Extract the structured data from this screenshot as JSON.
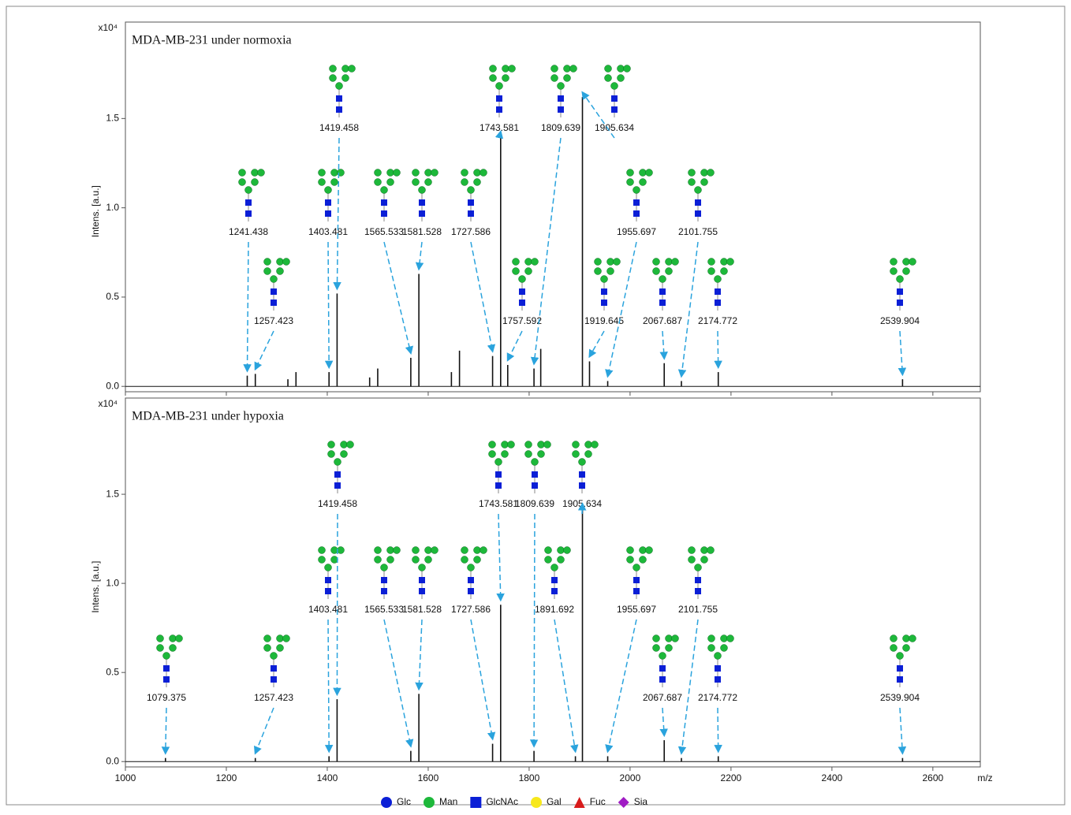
{
  "chart_data": [
    {
      "type": "stick",
      "title": "MDA-MB-231 under normoxia",
      "multiplier": "x10⁴",
      "ylabel": "Intens. [a.u.]",
      "xlim": [
        1000,
        2694
      ],
      "ylim": [
        -0.03,
        2.04
      ],
      "xticks": [
        1000,
        1200,
        1400,
        1600,
        1800,
        2000,
        2200,
        2400,
        2600
      ],
      "yticks": [
        {
          "value": 0,
          "label": "0.0"
        },
        0.5,
        {
          "value": 1,
          "label": "1.0"
        },
        1.5
      ],
      "color": "#111111",
      "x": [
        1241.438,
        1257.423,
        1322,
        1338,
        1403.481,
        1419.458,
        1484,
        1500,
        1565.533,
        1581.528,
        1646,
        1662,
        1727.586,
        1743.581,
        1757.592,
        1809.639,
        1823,
        1905.634,
        1919.645,
        1955.697,
        2067.687,
        2101.755,
        2174.772,
        2539.904
      ],
      "values": [
        0.06,
        0.07,
        0.04,
        0.08,
        0.08,
        0.52,
        0.05,
        0.1,
        0.16,
        0.63,
        0.08,
        0.2,
        0.17,
        1.4,
        0.12,
        0.1,
        0.21,
        1.62,
        0.14,
        0.03,
        0.13,
        0.03,
        0.08,
        0.04
      ],
      "annotations": [
        1241.438,
        1257.423,
        1403.481,
        1419.458,
        1565.533,
        1581.528,
        1727.586,
        1743.581,
        1757.592,
        1809.639,
        1905.634,
        1919.645,
        1955.697,
        2067.687,
        2101.755,
        2174.772,
        2539.904
      ]
    },
    {
      "type": "stick",
      "title": "MDA-MB-231 under hypoxia",
      "multiplier": "x10⁴",
      "ylabel": "Intens. [a.u.]",
      "xlabel": "m/z",
      "xlim": [
        1000,
        2694
      ],
      "ylim": [
        -0.03,
        2.04
      ],
      "xticks": [
        1000,
        1200,
        1400,
        1600,
        1800,
        2000,
        2200,
        2400,
        2600
      ],
      "yticks": [
        {
          "value": 0,
          "label": "0.0"
        },
        0.5,
        {
          "value": 1,
          "label": "1.0"
        },
        1.5
      ],
      "color": "#111111",
      "x": [
        1079.375,
        1257.423,
        1403.481,
        1419.458,
        1565.533,
        1581.528,
        1727.586,
        1743.581,
        1809.639,
        1891.692,
        1905.634,
        1955.697,
        2067.687,
        2101.755,
        2174.772,
        2539.904
      ],
      "values": [
        0.02,
        0.02,
        0.03,
        0.35,
        0.06,
        0.38,
        0.1,
        0.88,
        0.06,
        0.03,
        1.42,
        0.03,
        0.12,
        0.02,
        0.03,
        0.02
      ],
      "annotations": [
        1079.375,
        1257.423,
        1403.481,
        1419.458,
        1565.533,
        1581.528,
        1727.586,
        1743.581,
        1809.639,
        1891.692,
        1905.634,
        1955.697,
        2067.687,
        2101.755,
        2174.772,
        2539.904
      ]
    }
  ],
  "legend": [
    {
      "name": "Glc",
      "color": "#0b1fd6",
      "shape": "circle"
    },
    {
      "name": "Man",
      "color": "#1db83a",
      "shape": "circle"
    },
    {
      "name": "GlcNAc",
      "color": "#0b1fd6",
      "shape": "square"
    },
    {
      "name": "Gal",
      "color": "#f7e81c",
      "shape": "circle"
    },
    {
      "name": "Fuc",
      "color": "#d81b1b",
      "shape": "triangle"
    },
    {
      "name": "Sia",
      "color": "#a01cc4",
      "shape": "diamond"
    }
  ]
}
